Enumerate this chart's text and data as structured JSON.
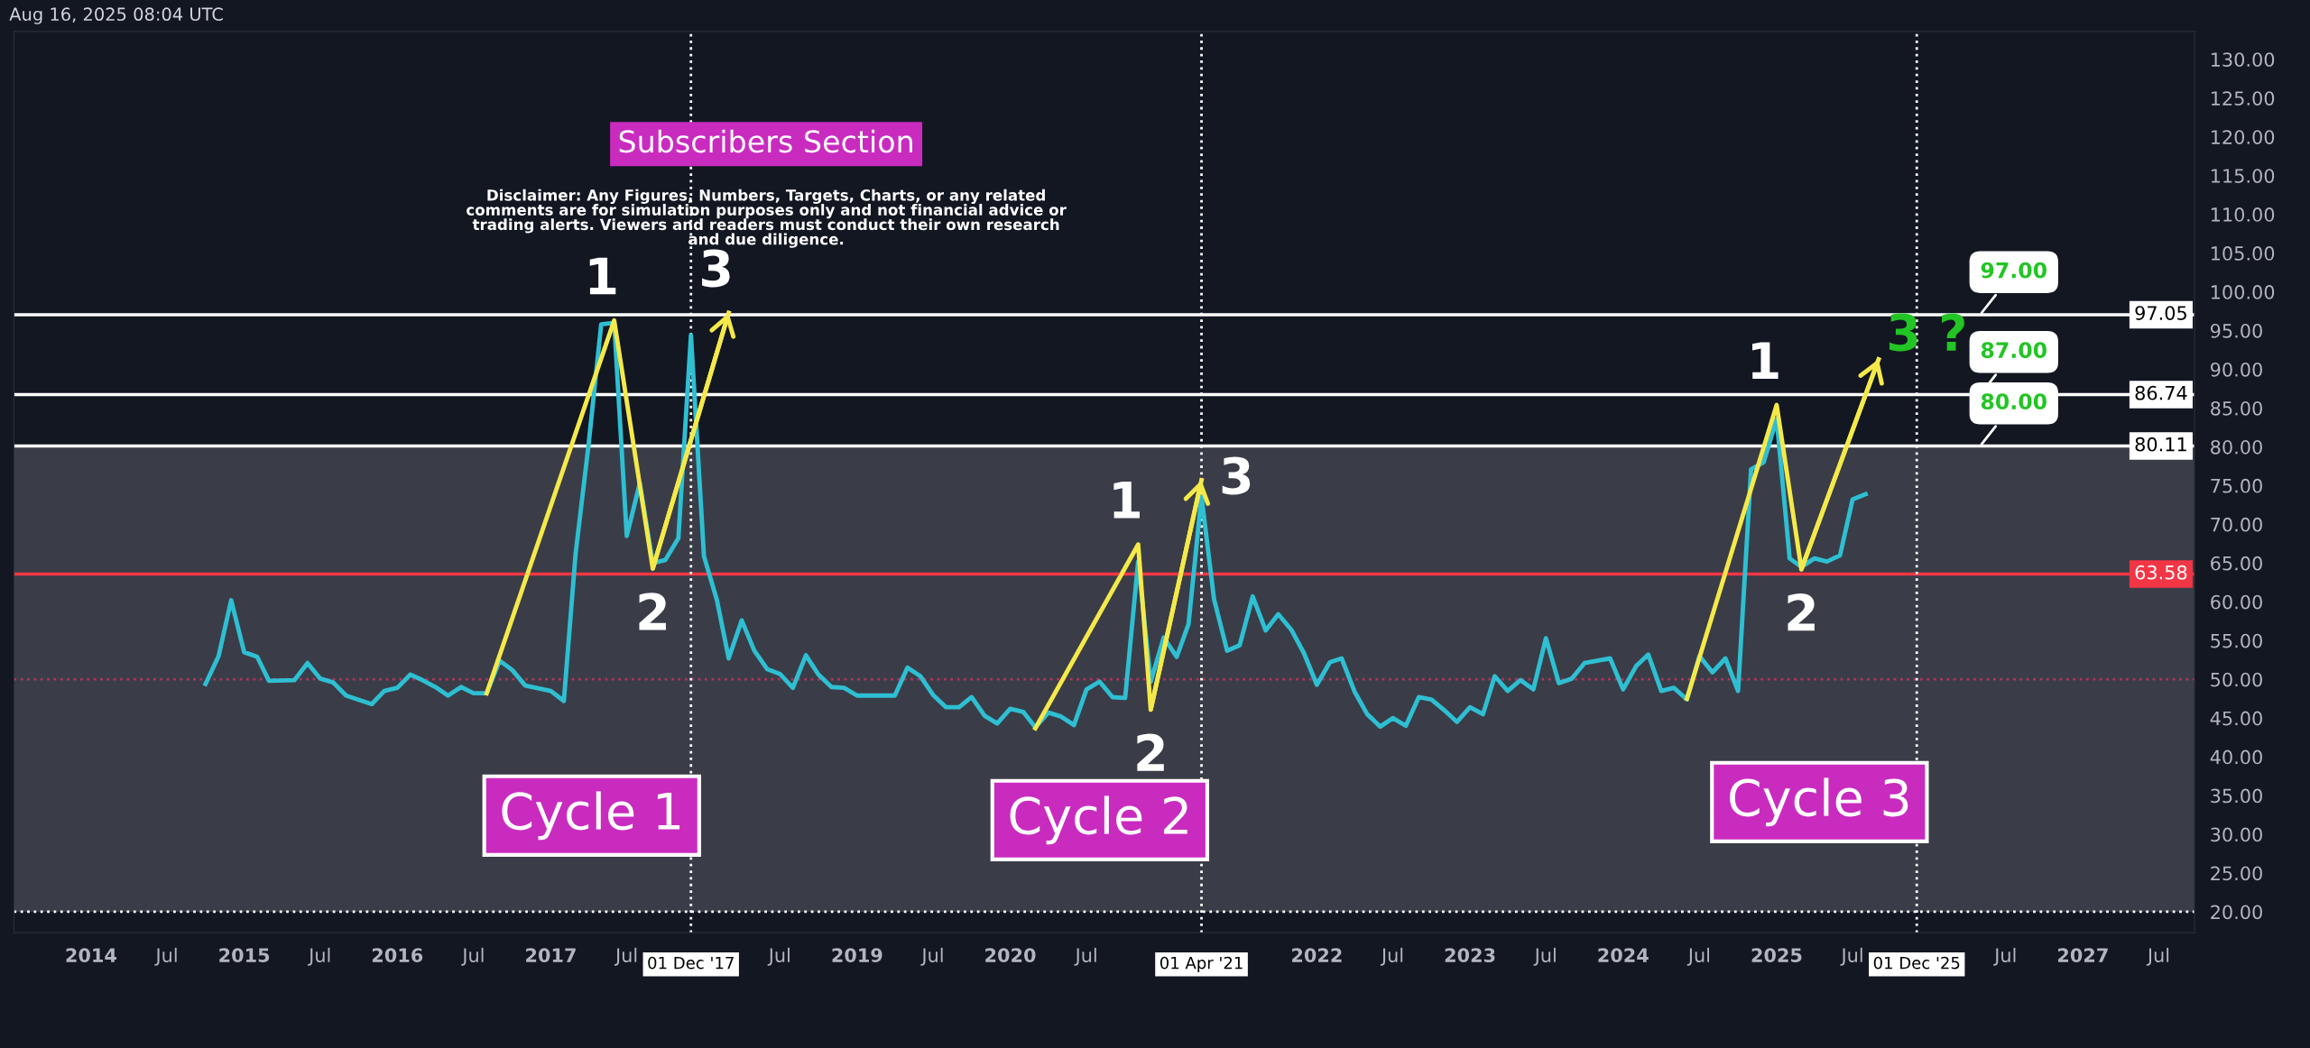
{
  "chart_data": {
    "type": "line",
    "subtitle": "Subscribers Section",
    "xlim": [
      "2013-07-01",
      "2027-09-24"
    ],
    "ylim": [
      17.3,
      133.6
    ],
    "xticks": [
      {
        "value": "2014-01-01",
        "label": "2014"
      },
      {
        "value": "2014-07-01",
        "label": "Jul"
      },
      {
        "value": "2015-01-01",
        "label": "2015"
      },
      {
        "value": "2015-07-01",
        "label": "Jul"
      },
      {
        "value": "2016-01-01",
        "label": "2016"
      },
      {
        "value": "2016-07-01",
        "label": "Jul"
      },
      {
        "value": "2017-01-01",
        "label": "2017"
      },
      {
        "value": "2017-07-01",
        "label": "Jul"
      },
      {
        "value": "2018-07-01",
        "label": "Jul"
      },
      {
        "value": "2019-01-01",
        "label": "2019"
      },
      {
        "value": "2019-07-01",
        "label": "Jul"
      },
      {
        "value": "2020-01-01",
        "label": "2020"
      },
      {
        "value": "2020-07-01",
        "label": "Jul"
      },
      {
        "value": "2022-01-01",
        "label": "2022"
      },
      {
        "value": "2022-07-01",
        "label": "Jul"
      },
      {
        "value": "2023-01-01",
        "label": "2023"
      },
      {
        "value": "2023-07-01",
        "label": "Jul"
      },
      {
        "value": "2024-01-01",
        "label": "2024"
      },
      {
        "value": "2024-07-01",
        "label": "Jul"
      },
      {
        "value": "2025-01-01",
        "label": "2025"
      },
      {
        "value": "2025-07-01",
        "label": "Jul"
      },
      {
        "value": "2026-07-01",
        "label": "Jul"
      },
      {
        "value": "2027-01-01",
        "label": "2027"
      },
      {
        "value": "2027-07-01",
        "label": "Jul"
      }
    ],
    "yticks": [
      {
        "value": 20,
        "label": "20.00"
      },
      {
        "value": 25,
        "label": "25.00"
      },
      {
        "value": 30,
        "label": "30.00"
      },
      {
        "value": 35,
        "label": "35.00"
      },
      {
        "value": 40,
        "label": "40.00"
      },
      {
        "value": 45,
        "label": "45.00"
      },
      {
        "value": 50,
        "label": "50.00"
      },
      {
        "value": 55,
        "label": "55.00"
      },
      {
        "value": 60,
        "label": "60.00"
      },
      {
        "value": 65,
        "label": "65.00"
      },
      {
        "value": 70,
        "label": "70.00"
      },
      {
        "value": 75,
        "label": "75.00"
      },
      {
        "value": 80,
        "label": "80.00"
      },
      {
        "value": 85,
        "label": "85.00"
      },
      {
        "value": 90,
        "label": "90.00"
      },
      {
        "value": 95,
        "label": "95.00"
      },
      {
        "value": 100,
        "label": "100.00"
      },
      {
        "value": 105,
        "label": "105.00"
      },
      {
        "value": 110,
        "label": "110.00"
      },
      {
        "value": 115,
        "label": "115.00"
      },
      {
        "value": 120,
        "label": "120.00"
      },
      {
        "value": 125,
        "label": "125.00"
      },
      {
        "value": 130,
        "label": "130.00"
      }
    ],
    "grid": false,
    "series": [
      {
        "color": "#2ebfd3",
        "x": [
          "2014-10",
          "2014-11",
          "2014-12",
          "2015-01",
          "2015-02",
          "2015-03",
          "2015-05",
          "2015-06",
          "2015-07",
          "2015-08",
          "2015-09",
          "2015-11",
          "2015-12",
          "2016-01",
          "2016-02",
          "2016-03",
          "2016-04",
          "2016-05",
          "2016-06",
          "2016-07",
          "2016-08",
          "2016-09",
          "2016-10",
          "2016-11",
          "2017-01",
          "2017-02",
          "2017-03",
          "2017-04",
          "2017-05",
          "2017-06",
          "2017-07",
          "2017-08",
          "2017-09",
          "2017-10",
          "2017-11",
          "2017-12",
          "2018-01",
          "2018-02",
          "2018-03",
          "2018-04",
          "2018-05",
          "2018-06",
          "2018-07",
          "2018-08",
          "2018-09",
          "2018-10",
          "2018-11",
          "2018-12",
          "2019-01",
          "2019-04",
          "2019-05",
          "2019-06",
          "2019-07",
          "2019-08",
          "2019-09",
          "2019-10",
          "2019-11",
          "2019-12",
          "2020-01",
          "2020-02",
          "2020-03",
          "2020-04",
          "2020-05",
          "2020-06",
          "2020-07",
          "2020-08",
          "2020-09",
          "2020-10",
          "2020-11",
          "2020-12",
          "2021-01",
          "2021-02",
          "2021-03",
          "2021-04",
          "2021-05",
          "2021-06",
          "2021-07",
          "2021-08",
          "2021-09",
          "2021-10",
          "2021-11",
          "2021-12",
          "2022-01",
          "2022-02",
          "2022-03",
          "2022-04",
          "2022-05",
          "2022-06",
          "2022-07",
          "2022-08",
          "2022-09",
          "2022-10",
          "2022-11",
          "2022-12",
          "2023-01",
          "2023-02",
          "2023-03",
          "2023-04",
          "2023-05",
          "2023-06",
          "2023-07",
          "2023-08",
          "2023-09",
          "2023-10",
          "2023-12",
          "2024-01",
          "2024-02",
          "2024-03",
          "2024-04",
          "2024-05",
          "2024-06",
          "2024-07",
          "2024-08",
          "2024-09",
          "2024-10",
          "2024-11",
          "2024-12",
          "2025-01",
          "2025-02",
          "2025-03",
          "2025-04",
          "2025-05",
          "2025-06",
          "2025-07",
          "2025-08"
        ],
        "values": [
          49.4,
          53.0,
          60.2,
          53.5,
          52.9,
          49.8,
          49.9,
          52.1,
          50.1,
          49.6,
          47.9,
          46.8,
          48.5,
          48.9,
          50.6,
          49.9,
          49.0,
          47.9,
          49.0,
          48.2,
          48.2,
          52.4,
          51.2,
          49.2,
          48.5,
          47.2,
          66.2,
          80.3,
          95.8,
          96.0,
          68.5,
          75.3,
          65.0,
          65.4,
          68.2,
          94.4,
          65.9,
          60.2,
          52.7,
          57.6,
          53.7,
          51.3,
          50.7,
          48.9,
          53.1,
          50.6,
          49.0,
          48.9,
          47.9,
          47.9,
          51.5,
          50.4,
          48.0,
          46.4,
          46.4,
          47.7,
          45.3,
          44.3,
          46.2,
          45.8,
          43.8,
          45.7,
          45.2,
          44.1,
          48.7,
          49.7,
          47.7,
          47.6,
          65.2,
          49.7,
          55.4,
          52.9,
          57.1,
          73.6,
          60.3,
          53.7,
          54.4,
          60.7,
          56.3,
          58.4,
          56.4,
          53.4,
          49.3,
          52.2,
          52.7,
          48.4,
          45.5,
          43.9,
          45.0,
          44.0,
          47.7,
          47.4,
          46.0,
          44.5,
          46.4,
          45.5,
          50.4,
          48.5,
          49.9,
          48.7,
          55.3,
          49.5,
          50.1,
          52.1,
          52.7,
          48.7,
          51.7,
          53.2,
          48.5,
          48.9,
          47.4,
          53.0,
          50.9,
          52.7,
          48.5,
          77.1,
          78.0,
          83.6,
          65.6,
          64.5,
          65.6,
          65.2,
          66.0,
          73.2,
          73.9
        ]
      },
      {
        "type": "line",
        "color": "#f5e94a",
        "x": [
          "2016-08-01",
          "2017-06-01",
          "2017-09-01",
          "2018-03-01"
        ],
        "values": [
          48.2,
          96.3,
          64.3,
          97.3
        ]
      },
      {
        "type": "line",
        "color": "#f5e94a",
        "x": [
          "2020-03-01",
          "2020-11-01",
          "2020-12-01",
          "2021-04-01"
        ],
        "values": [
          43.7,
          67.4,
          46.1,
          75.7
        ]
      },
      {
        "type": "line",
        "color": "#f5e94a",
        "x": [
          "2024-06-01",
          "2025-01-01",
          "2025-03-01",
          "2025-09-01"
        ],
        "values": [
          47.5,
          85.4,
          64.2,
          91.3
        ]
      }
    ],
    "bands": [
      {
        "axis": "y",
        "from": 20,
        "to": 80.11,
        "color": "#3a3d47"
      }
    ],
    "ref_lines": [
      {
        "axis": "y",
        "value": 97.05,
        "label": "97.05",
        "color": "#ffffff",
        "line_style": "solid"
      },
      {
        "axis": "y",
        "value": 86.74,
        "label": "86.74",
        "color": "#ffffff",
        "line_style": "solid"
      },
      {
        "axis": "y",
        "value": 80.11,
        "label": "80.11",
        "color": "#ffffff",
        "line_style": "solid"
      },
      {
        "axis": "y",
        "value": 63.58,
        "label": "63.58",
        "color": "#f23645",
        "line_style": "solid"
      },
      {
        "axis": "y",
        "value": 50,
        "color": "#b0345e",
        "line_style": "dotted"
      },
      {
        "axis": "y",
        "value": 20,
        "color": "#ffffff",
        "line_style": "dotted"
      },
      {
        "axis": "x",
        "value": "2017-12-01",
        "label": "01 Dec '17",
        "color": "#ffffff",
        "line_style": "dotted"
      },
      {
        "axis": "x",
        "value": "2021-04-01",
        "label": "01 Apr '21",
        "color": "#ffffff",
        "line_style": "dotted"
      },
      {
        "axis": "x",
        "value": "2025-12-01",
        "label": "01 Dec '25",
        "color": "#ffffff",
        "line_style": "dotted"
      }
    ],
    "annotations": [
      "Aug 16, 2025 08:04 UTC",
      "Disclaimer: Any Figures, Numbers, Targets, Charts, or any related\ncomments are for simulation purposes only and not financial advice or\ntrading alerts. Viewers and readers must conduct their own research\nand due diligence.",
      "Cycle 1",
      "Cycle 2",
      "Cycle 3",
      {
        "text": "1",
        "x": "2017-06-01",
        "y": 96.3
      },
      {
        "text": "2",
        "x": "2017-09-01",
        "y": 64.3
      },
      {
        "text": "3",
        "x": "2018-03-01",
        "y": 97.3
      },
      {
        "text": "1",
        "x": "2020-11-01",
        "y": 67.4
      },
      {
        "text": "2",
        "x": "2020-12-01",
        "y": 46.1
      },
      {
        "text": "3",
        "x": "2021-04-01",
        "y": 75.7
      },
      {
        "text": "1",
        "x": "2025-01-01",
        "y": 85.4
      },
      {
        "text": "2",
        "x": "2025-03-01",
        "y": 64.2
      },
      {
        "text": "3 ?",
        "x": "2025-09-01",
        "y": 91.3
      },
      {
        "text": "97.00",
        "x": "2026-05-01",
        "y": 97.05
      },
      {
        "text": "87.00",
        "x": "2026-05-01",
        "y": 86.74
      },
      {
        "text": "80.00",
        "x": "2026-05-01",
        "y": 80.11
      }
    ]
  }
}
